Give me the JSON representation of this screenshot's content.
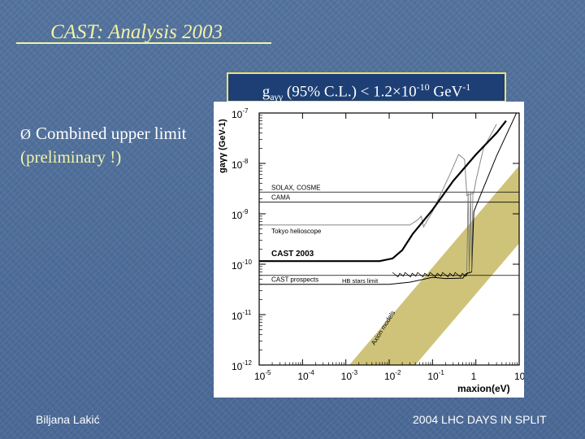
{
  "slide": {
    "title": "CAST: Analysis 2003",
    "limit_g": "g",
    "limit_sub": "aγγ",
    "limit_text": " (95% C.L.) < 1.2×10",
    "limit_exp": "-10",
    "limit_unit": " GeV",
    "limit_unit_exp": "-1",
    "bullet_arrow": "Ø",
    "bullet_text": "Combined upper limit",
    "bullet_highlight": "(preliminary !)",
    "footer_left": "Biljana Lakić",
    "footer_right": "2004 LHC DAYS IN SPLIT"
  },
  "chart_data": {
    "type": "line",
    "xscale": "log",
    "yscale": "log",
    "xlim": [
      1e-05,
      10
    ],
    "ylim": [
      1e-12,
      1e-07
    ],
    "ylabel": "gaγγ (GeV-1)",
    "xlabel": "maxion(eV)",
    "x_ticks": [
      {
        "value": 1e-05,
        "base": "10",
        "exp": "-5"
      },
      {
        "value": 0.0001,
        "base": "10",
        "exp": "-4"
      },
      {
        "value": 0.001,
        "base": "10",
        "exp": "-3"
      },
      {
        "value": 0.01,
        "base": "10",
        "exp": "-2"
      },
      {
        "value": 0.1,
        "base": "10",
        "exp": "-1"
      },
      {
        "value": 1,
        "base": "1",
        "exp": ""
      },
      {
        "value": 10,
        "base": "10",
        "exp": ""
      }
    ],
    "y_ticks": [
      {
        "value": 1e-07,
        "base": "10",
        "exp": "-7"
      },
      {
        "value": 1e-08,
        "base": "10",
        "exp": "-8"
      },
      {
        "value": 1e-09,
        "base": "10",
        "exp": "-9"
      },
      {
        "value": 1e-10,
        "base": "10",
        "exp": "-10"
      },
      {
        "value": 1e-11,
        "base": "10",
        "exp": "-11"
      },
      {
        "value": 1e-12,
        "base": "10",
        "exp": "-12"
      }
    ],
    "horizontal_limits": [
      {
        "label": "SOLAX, COSME",
        "value": 2.7e-09
      },
      {
        "label": "CAMA",
        "value": 1.7e-09
      },
      {
        "label": "HB stars limit",
        "value": 6e-11
      }
    ],
    "series": [
      {
        "name": "Tokyo helioscope",
        "color": "#888888",
        "points": [
          [
            1e-05,
            6e-10
          ],
          [
            0.03,
            6e-10
          ],
          [
            0.045,
            7.5e-10
          ],
          [
            0.055,
            9e-10
          ],
          [
            0.062,
            5.5e-10
          ],
          [
            0.1,
            1.1e-09
          ],
          [
            0.25,
            6e-09
          ],
          [
            0.4,
            1.5e-08
          ],
          [
            0.55,
            1.2e-08
          ],
          [
            0.62,
            2.3e-09
          ],
          [
            0.9,
            2.6e-09
          ],
          [
            1.0,
            4.5e-09
          ],
          [
            1.5,
            2e-08
          ],
          [
            3,
            6e-08
          ]
        ]
      },
      {
        "name": "CAST 2003",
        "color": "#000000",
        "points": [
          [
            1e-05,
            1.15e-10
          ],
          [
            0.006,
            1.15e-10
          ],
          [
            0.012,
            1.3e-10
          ],
          [
            0.02,
            1.9e-10
          ],
          [
            0.035,
            4e-10
          ],
          [
            0.1,
            1.2e-09
          ],
          [
            0.3,
            4.5e-09
          ],
          [
            1,
            1.5e-08
          ],
          [
            3,
            4e-08
          ],
          [
            5,
            7e-08
          ]
        ]
      },
      {
        "name": "CAST prospects",
        "color": "#000000",
        "points": [
          [
            1e-05,
            4e-11
          ],
          [
            0.01,
            4e-11
          ],
          [
            0.03,
            4.4e-11
          ],
          [
            0.1,
            5.5e-11
          ],
          [
            0.2,
            5.2e-11
          ],
          [
            0.5,
            5.3e-11
          ],
          [
            0.6,
            6.5e-11
          ],
          [
            0.8,
            7e-11
          ],
          [
            0.85,
            3e-10
          ],
          [
            0.9,
            1.1e-09
          ],
          [
            1,
            1.4e-09
          ],
          [
            3,
            1.4e-08
          ],
          [
            10,
            1.3e-07
          ]
        ]
      }
    ],
    "axion_band": {
      "label": "Axion models"
    },
    "annotations": [
      "SOLAX, COSME",
      "CAMA",
      "Tokyo helioscope",
      "CAST 2003",
      "HB stars limit",
      "CAST prospects",
      "Axion models"
    ]
  }
}
